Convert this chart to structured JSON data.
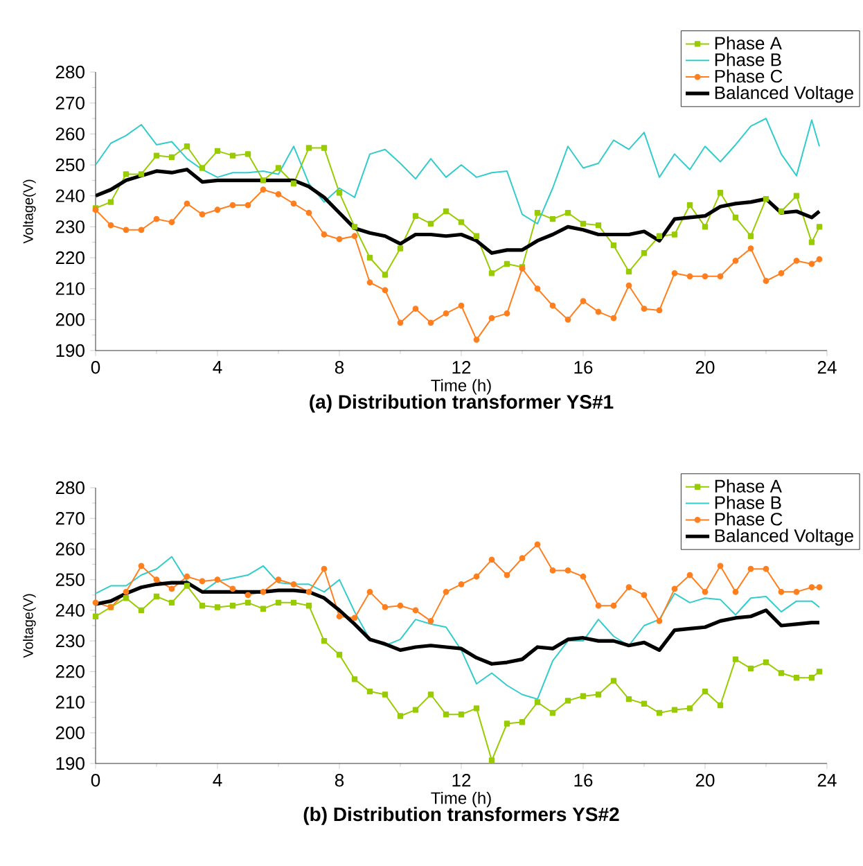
{
  "chart_data": [
    {
      "type": "line",
      "title": "(a) Distribution transformer YS#1",
      "xlabel": "Time (h)",
      "ylabel": "Voltage(V)",
      "xlim": [
        0,
        24
      ],
      "ylim": [
        190,
        280
      ],
      "xticks": [
        0,
        4,
        8,
        12,
        16,
        20,
        24
      ],
      "yticks": [
        190,
        200,
        210,
        220,
        230,
        240,
        250,
        260,
        270,
        280
      ],
      "legend": "top right",
      "x": [
        0,
        0.5,
        1,
        1.5,
        2,
        2.5,
        3,
        3.5,
        4,
        4.5,
        5,
        5.5,
        6,
        6.5,
        7,
        7.5,
        8,
        8.5,
        9,
        9.5,
        10,
        10.5,
        11,
        11.5,
        12,
        12.5,
        13,
        13.5,
        14,
        14.5,
        15,
        15.5,
        16,
        16.5,
        17,
        17.5,
        18,
        18.5,
        19,
        19.5,
        20,
        20.5,
        21,
        21.5,
        22,
        22.5,
        23,
        23.5,
        23.75
      ],
      "series": [
        {
          "name": "Phase A",
          "color": "#99cc00",
          "marker": "square",
          "values": [
            236,
            238,
            247,
            247,
            253,
            252.5,
            256,
            249,
            254.5,
            253,
            253.5,
            245,
            249,
            244,
            255.5,
            255.5,
            241,
            230,
            220,
            214.5,
            223,
            233.5,
            231,
            235,
            231.5,
            227,
            215,
            218,
            217,
            234.5,
            232.5,
            234.5,
            231,
            230.5,
            224,
            215.5,
            221.5,
            227,
            227.5,
            237,
            230,
            241,
            233,
            227,
            239,
            235,
            240,
            225,
            230
          ]
        },
        {
          "name": "Phase B",
          "color": "#33cccc",
          "marker": "none",
          "values": [
            250,
            257,
            259.5,
            263,
            256.5,
            257.5,
            252,
            248.5,
            246,
            247.5,
            247.5,
            248,
            247,
            256,
            244,
            238,
            242.5,
            239.5,
            253.5,
            255,
            250.5,
            245.5,
            252,
            246,
            250,
            246,
            247.5,
            248,
            234,
            231,
            242.5,
            256,
            249,
            250.5,
            258,
            255,
            260.5,
            246,
            253.5,
            248.5,
            256,
            251,
            256.5,
            262.5,
            265,
            253.5,
            246.5,
            264.5,
            256
          ]
        },
        {
          "name": "Phase C",
          "color": "#ff7f1e",
          "marker": "circle",
          "values": [
            235.5,
            230.5,
            229,
            229,
            232.5,
            231.5,
            237.5,
            234,
            235.5,
            237,
            237,
            242,
            240.5,
            237.5,
            234.5,
            227.5,
            226,
            227,
            212,
            209.5,
            199,
            203.5,
            199,
            202,
            204.5,
            193.5,
            200.5,
            202,
            216.5,
            210,
            204.5,
            200,
            206,
            202.5,
            200.5,
            211,
            203.5,
            203,
            215,
            214,
            214,
            214,
            219,
            223,
            212.5,
            215,
            219,
            218,
            219.5
          ]
        },
        {
          "name": "Balanced Voltage",
          "color": "#000000",
          "marker": "none",
          "values": [
            240,
            242,
            245,
            246.5,
            248,
            247.5,
            248.5,
            244.5,
            245,
            245,
            245,
            245,
            245,
            245,
            243,
            239.5,
            234.5,
            229.5,
            228,
            227,
            224.5,
            227.5,
            227.5,
            227,
            227.5,
            225.5,
            221.5,
            222.5,
            222.5,
            225.5,
            227.5,
            230,
            229,
            227.5,
            227.5,
            227.5,
            228.5,
            225.5,
            232.5,
            233,
            233.5,
            236.5,
            237.5,
            238,
            239,
            234.5,
            235,
            233,
            235
          ]
        }
      ]
    },
    {
      "type": "line",
      "title": "(b) Distribution transformers YS#2",
      "xlabel": "Time (h)",
      "ylabel": "Voltage(V)",
      "xlim": [
        0,
        24
      ],
      "ylim": [
        190,
        280
      ],
      "xticks": [
        0,
        4,
        8,
        12,
        16,
        20,
        24
      ],
      "yticks": [
        190,
        200,
        210,
        220,
        230,
        240,
        250,
        260,
        270,
        280
      ],
      "legend": "top right",
      "x": [
        0,
        0.5,
        1,
        1.5,
        2,
        2.5,
        3,
        3.5,
        4,
        4.5,
        5,
        5.5,
        6,
        6.5,
        7,
        7.5,
        8,
        8.5,
        9,
        9.5,
        10,
        10.5,
        11,
        11.5,
        12,
        12.5,
        13,
        13.5,
        14,
        14.5,
        15,
        15.5,
        16,
        16.5,
        17,
        17.5,
        18,
        18.5,
        19,
        19.5,
        20,
        20.5,
        21,
        21.5,
        22,
        22.5,
        23,
        23.5,
        23.75
      ],
      "series": [
        {
          "name": "Phase A",
          "color": "#99cc00",
          "marker": "square",
          "values": [
            238,
            241,
            244,
            240,
            244.5,
            242.5,
            248,
            241.5,
            241,
            241.5,
            242.5,
            240.5,
            242.5,
            242.5,
            241.5,
            230,
            225.5,
            217.5,
            213.5,
            212.5,
            205.5,
            207.5,
            212.5,
            206,
            206,
            208,
            191,
            203,
            203.5,
            210,
            206.5,
            210.5,
            212,
            212.5,
            217,
            211,
            209.5,
            206.5,
            207.5,
            208,
            213.5,
            209,
            224,
            221,
            223,
            219.5,
            218,
            218,
            220
          ]
        },
        {
          "name": "Phase B",
          "color": "#33cccc",
          "marker": "none",
          "values": [
            245.5,
            248,
            248,
            251.5,
            253.5,
            257.5,
            249.5,
            246,
            249.5,
            250.5,
            251.5,
            254.5,
            249,
            248.5,
            248.5,
            246,
            250,
            239.5,
            230.5,
            228.5,
            230.5,
            237,
            235.5,
            234.5,
            227,
            216,
            219.5,
            215.5,
            212.5,
            211,
            223.5,
            230,
            230,
            237,
            231.5,
            228.5,
            235,
            237,
            245.5,
            242.5,
            244,
            243.5,
            238.5,
            244,
            244.5,
            239.5,
            243,
            243,
            241
          ]
        },
        {
          "name": "Phase C",
          "color": "#ff7f1e",
          "marker": "circle",
          "values": [
            242.5,
            241,
            246,
            254.5,
            250,
            247,
            251,
            249.5,
            250,
            247,
            245,
            246,
            250,
            248.5,
            246,
            253.5,
            238,
            237.5,
            246,
            241,
            241.5,
            240,
            236.5,
            246,
            248.5,
            251,
            256.5,
            251.5,
            257,
            261.5,
            253,
            253,
            251,
            241.5,
            241.5,
            247.5,
            245,
            236.5,
            247,
            251.5,
            246,
            254.5,
            246,
            253.5,
            253.5,
            246,
            246,
            247.5,
            247.5
          ]
        },
        {
          "name": "Balanced Voltage",
          "color": "#000000",
          "marker": "none",
          "values": [
            242,
            243,
            245.5,
            247.5,
            248.5,
            249,
            249,
            246,
            246,
            246,
            246,
            246,
            246.5,
            246.5,
            246,
            244,
            240,
            235.5,
            230.5,
            229,
            227,
            228,
            228.5,
            228,
            227.5,
            224.5,
            222.5,
            223,
            224,
            228,
            227.5,
            230.5,
            231,
            230,
            230,
            228.5,
            229.5,
            227,
            233.5,
            234,
            234.5,
            236.5,
            237.5,
            238,
            240,
            235,
            235.5,
            236,
            236
          ]
        }
      ]
    }
  ]
}
